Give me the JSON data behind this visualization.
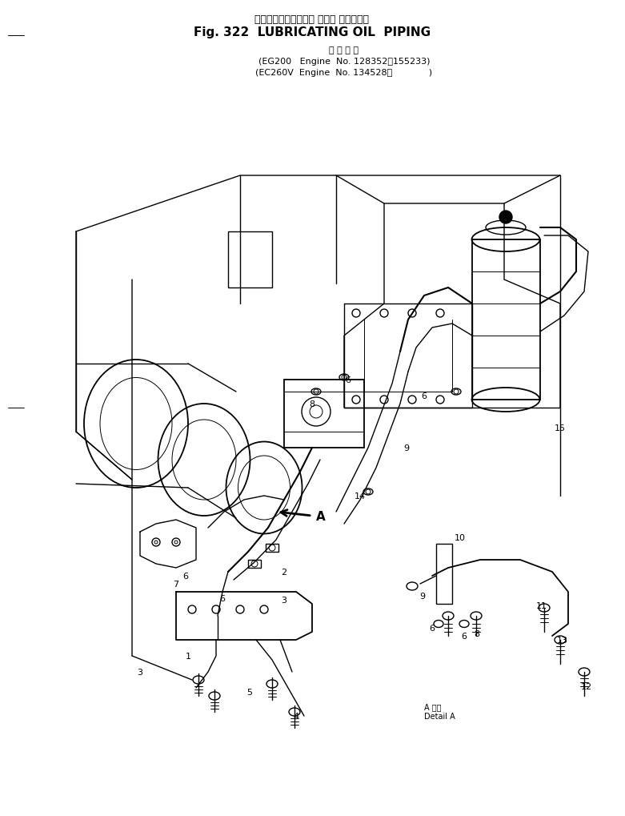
{
  "title_jp": "ルーブリケーティング オイル パイピング",
  "title_en": "Fig. 322  LUBRICATING OIL  PIPING",
  "subtitle_jp": "適 用 号 機",
  "line1": "(EG200   Engine  No. 128352～155233)",
  "line2": "(EC260V  Engine  No. 134528～             )",
  "bg_color": "#ffffff",
  "line_color": "#000000",
  "fig_width": 7.81,
  "fig_height": 10.2,
  "dpi": 100,
  "detail_a_jp": "A 詳細",
  "detail_a_en": "Detail A"
}
